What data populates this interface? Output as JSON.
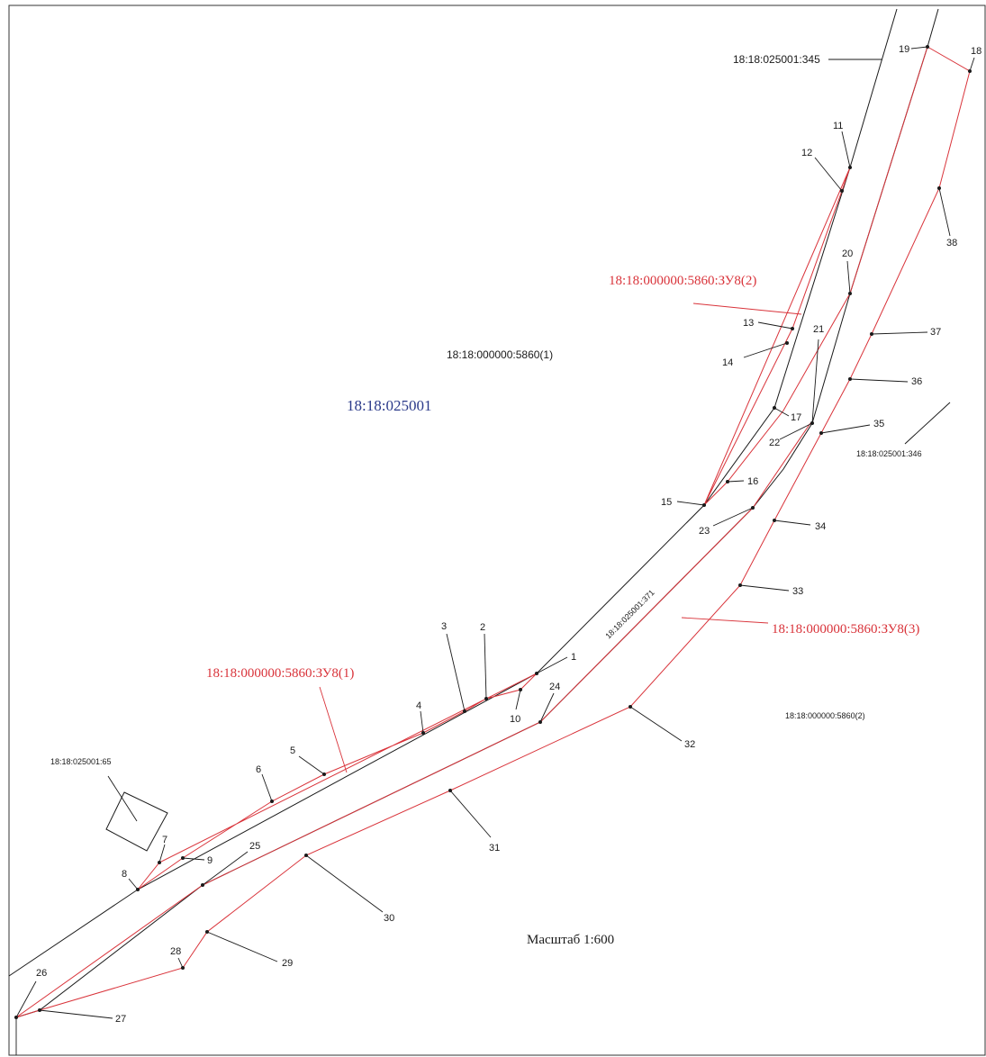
{
  "cadastral_block": {
    "label": "18:18:025001",
    "color": "#2b3a8a"
  },
  "scale": {
    "label": "Масштаб 1:600"
  },
  "parcels": {
    "p1": "18:18:000000:5860(1)",
    "p2": "18:18:000000:5860(2)",
    "p345": "18:18:025001:345",
    "p346": "18:18:025001:346",
    "p65": "18:18:025001:65",
    "p371": "18:18:025001:371"
  },
  "zu": {
    "zu1": "18:18:000000:5860:ЗУ8(1)",
    "zu2": "18:18:000000:5860:ЗУ8(2)",
    "zu3": "18:18:000000:5860:ЗУ8(3)"
  },
  "colors": {
    "boundary": "#1a1a1a",
    "new_boundary": "#d9333a"
  },
  "points": [
    "1",
    "2",
    "3",
    "4",
    "5",
    "6",
    "7",
    "8",
    "9",
    "10",
    "11",
    "12",
    "13",
    "14",
    "15",
    "16",
    "17",
    "18",
    "19",
    "20",
    "21",
    "22",
    "23",
    "24",
    "25",
    "26",
    "27",
    "28",
    "29",
    "30",
    "31",
    "32",
    "33",
    "34",
    "35",
    "36",
    "37",
    "38"
  ]
}
